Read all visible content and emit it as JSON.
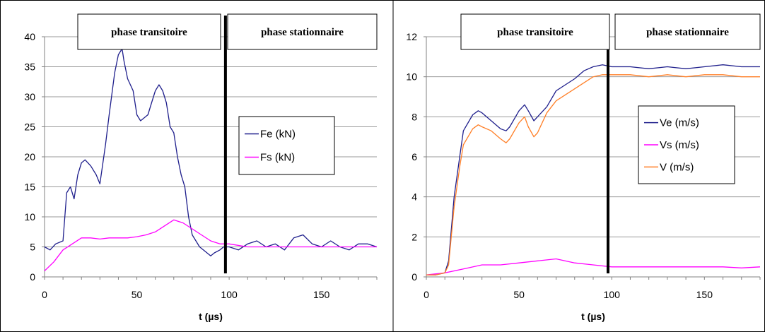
{
  "chart_data": [
    {
      "type": "line",
      "xlabel": "t (µs)",
      "ylabel": "",
      "xlim": [
        0,
        180
      ],
      "ylim": [
        0,
        40
      ],
      "x_ticks": [
        0,
        50,
        100,
        150
      ],
      "y_ticks": [
        0,
        5,
        10,
        15,
        20,
        25,
        30,
        35,
        40
      ],
      "grid": "horizontal",
      "legend_position": "right-middle",
      "phase_boundary_x": 98,
      "phase_labels": [
        "phase transitoire",
        "phase stationnaire"
      ],
      "series": [
        {
          "name": "Fe (kN)",
          "color": "#1f1f8c",
          "x": [
            0,
            3,
            6,
            10,
            12,
            14,
            16,
            18,
            20,
            22,
            25,
            28,
            30,
            33,
            35,
            38,
            40,
            42,
            43,
            45,
            48,
            50,
            52,
            54,
            56,
            58,
            60,
            62,
            64,
            66,
            68,
            70,
            72,
            74,
            76,
            78,
            80,
            82,
            84,
            86,
            88,
            90,
            92,
            95,
            97,
            100,
            105,
            110,
            115,
            120,
            125,
            130,
            135,
            140,
            145,
            150,
            155,
            160,
            165,
            170,
            175,
            180
          ],
          "y": [
            5,
            4.5,
            5.5,
            6,
            14,
            15,
            13,
            17,
            19,
            19.5,
            18.5,
            17,
            15.5,
            22,
            27,
            34,
            37,
            38,
            36,
            33,
            31,
            27,
            26,
            26.5,
            27,
            29,
            31,
            32,
            31,
            29,
            25,
            24,
            20,
            17,
            15,
            10,
            7,
            6,
            5,
            4.5,
            4,
            3.5,
            4,
            4.5,
            5,
            5,
            4.5,
            5.5,
            6,
            5,
            5.5,
            4.5,
            6.5,
            7,
            5.5,
            5,
            6,
            5,
            4.5,
            5.5,
            5.5,
            5
          ]
        },
        {
          "name": "Fs (kN)",
          "color": "#ff00ff",
          "x": [
            0,
            5,
            10,
            15,
            20,
            25,
            30,
            35,
            40,
            45,
            50,
            55,
            60,
            65,
            70,
            75,
            80,
            85,
            90,
            95,
            100,
            110,
            120,
            130,
            140,
            150,
            160,
            170,
            180
          ],
          "y": [
            1,
            2.5,
            4.5,
            5.5,
            6.5,
            6.5,
            6.3,
            6.5,
            6.5,
            6.5,
            6.7,
            7,
            7.5,
            8.5,
            9.5,
            9,
            8,
            7,
            6,
            5.5,
            5.5,
            5,
            5,
            5,
            5,
            5,
            5,
            5,
            5
          ]
        }
      ]
    },
    {
      "type": "line",
      "xlabel": "t (µs)",
      "ylabel": "",
      "xlim": [
        0,
        180
      ],
      "ylim": [
        0,
        12
      ],
      "x_ticks": [
        0,
        50,
        100,
        150
      ],
      "y_ticks": [
        0,
        2,
        4,
        6,
        8,
        10,
        12
      ],
      "grid": "horizontal",
      "legend_position": "right-middle",
      "phase_boundary_x": 98,
      "phase_labels": [
        "phase transitoire",
        "phase stationnaire"
      ],
      "series": [
        {
          "name": "Ve (m/s)",
          "color": "#1f1f8c",
          "x": [
            0,
            5,
            10,
            12,
            15,
            18,
            20,
            25,
            28,
            30,
            35,
            40,
            43,
            45,
            50,
            53,
            55,
            58,
            60,
            65,
            70,
            75,
            80,
            85,
            90,
            95,
            100,
            110,
            120,
            130,
            140,
            150,
            160,
            170,
            180
          ],
          "y": [
            0.1,
            0.1,
            0.2,
            0.8,
            4,
            6,
            7.3,
            8.1,
            8.3,
            8.2,
            7.8,
            7.4,
            7.3,
            7.5,
            8.3,
            8.6,
            8.3,
            7.8,
            8,
            8.5,
            9.3,
            9.6,
            9.9,
            10.3,
            10.5,
            10.6,
            10.5,
            10.5,
            10.4,
            10.5,
            10.4,
            10.5,
            10.6,
            10.5,
            10.5
          ]
        },
        {
          "name": "Vs (m/s)",
          "color": "#ff00ff",
          "x": [
            0,
            10,
            20,
            30,
            40,
            50,
            60,
            70,
            80,
            90,
            100,
            110,
            120,
            130,
            140,
            150,
            160,
            170,
            180
          ],
          "y": [
            0.1,
            0.2,
            0.4,
            0.6,
            0.6,
            0.7,
            0.8,
            0.9,
            0.7,
            0.6,
            0.5,
            0.5,
            0.5,
            0.5,
            0.5,
            0.5,
            0.5,
            0.45,
            0.5
          ]
        },
        {
          "name": "V (m/s)",
          "color": "#ff7f27",
          "x": [
            0,
            5,
            10,
            12,
            15,
            18,
            20,
            25,
            28,
            30,
            35,
            40,
            43,
            45,
            50,
            53,
            55,
            58,
            60,
            65,
            70,
            75,
            80,
            85,
            90,
            95,
            100,
            110,
            120,
            130,
            140,
            150,
            160,
            170,
            180
          ],
          "y": [
            0.1,
            0.1,
            0.2,
            0.6,
            3.5,
            5.5,
            6.6,
            7.4,
            7.6,
            7.5,
            7.3,
            6.9,
            6.7,
            6.9,
            7.7,
            8,
            7.5,
            7,
            7.2,
            8.2,
            8.8,
            9.1,
            9.4,
            9.7,
            10,
            10.1,
            10.1,
            10.1,
            10,
            10.1,
            10,
            10.1,
            10.1,
            10,
            10
          ]
        }
      ]
    }
  ]
}
